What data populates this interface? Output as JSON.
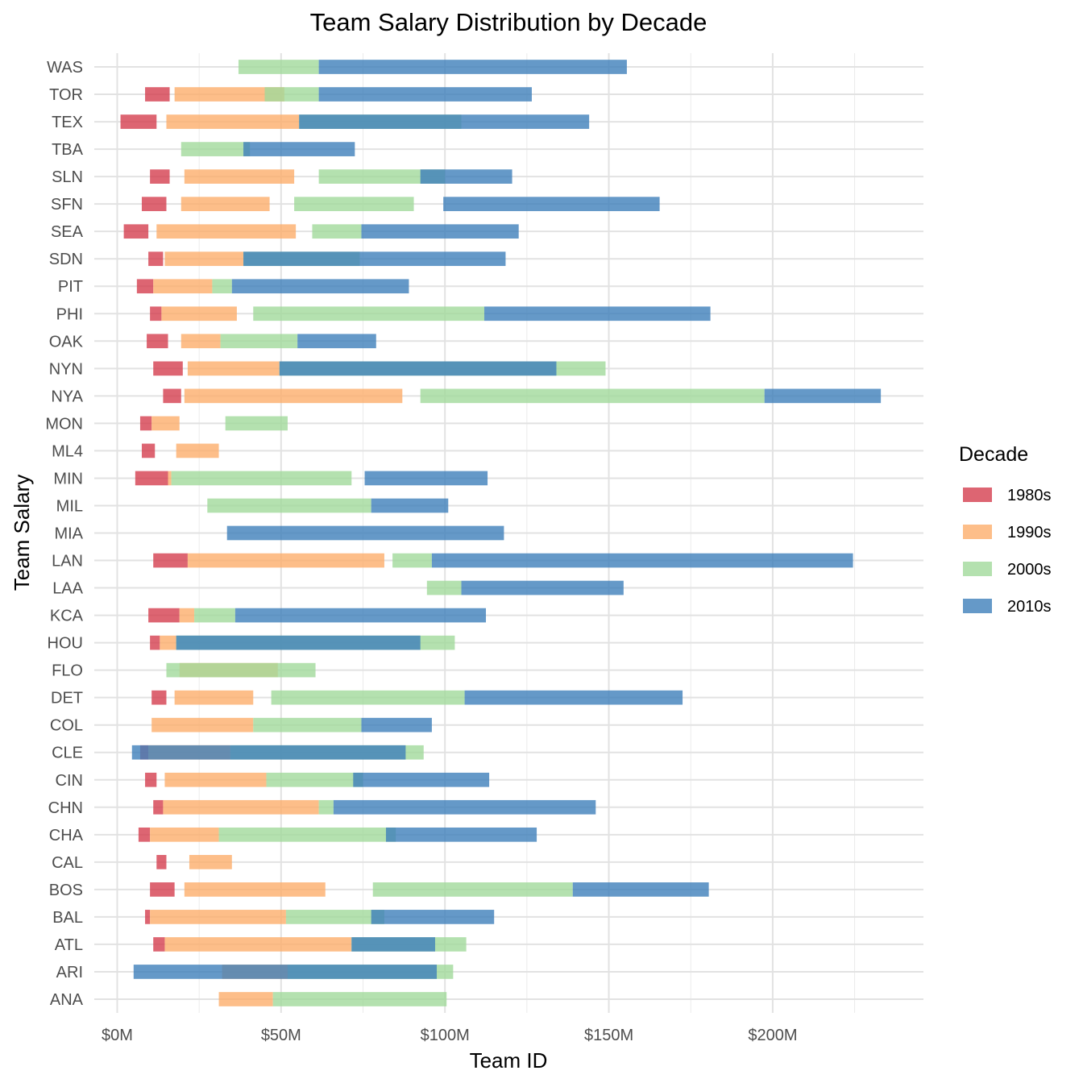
{
  "chart_data": {
    "type": "bar",
    "title": "Team Salary Distribution by Decade",
    "xlabel": "Team ID",
    "ylabel": "Team Salary",
    "xlim": [
      -7,
      246
    ],
    "x_ticks": [
      0,
      50,
      100,
      150,
      200
    ],
    "x_tick_labels": [
      "$0M",
      "$50M",
      "$100M",
      "$150M",
      "$200M"
    ],
    "grid": true,
    "legend": {
      "title": "Decade",
      "position": "right"
    },
    "series": [
      {
        "name": "1980s",
        "color": "#D53E4F"
      },
      {
        "name": "1990s",
        "color": "#FDAE6B"
      },
      {
        "name": "2000s",
        "color": "#A1D99B"
      },
      {
        "name": "2010s",
        "color": "#3E7FBA"
      }
    ],
    "categories": [
      "ANA",
      "ARI",
      "ATL",
      "BAL",
      "BOS",
      "CAL",
      "CHA",
      "CHN",
      "CIN",
      "CLE",
      "COL",
      "DET",
      "FLO",
      "HOU",
      "KCA",
      "LAA",
      "LAN",
      "MIA",
      "MIL",
      "MIN",
      "ML4",
      "MON",
      "NYA",
      "NYN",
      "OAK",
      "PHI",
      "PIT",
      "SDN",
      "SEA",
      "SFN",
      "SLN",
      "TBA",
      "TEX",
      "TOR",
      "WAS"
    ],
    "ranges": {
      "ANA": {
        "1990s": [
          31,
          47.5
        ],
        "2000s": [
          47.5,
          100.5
        ]
      },
      "ARI": {
        "1990s": [
          32,
          52
        ],
        "2000s": [
          52,
          102.5
        ],
        "2010s": [
          5,
          97.5
        ]
      },
      "ATL": {
        "1980s": [
          11,
          14.5
        ],
        "1990s": [
          14.5,
          71.5
        ],
        "2000s": [
          71.5,
          106.5
        ],
        "2010s": [
          71.5,
          97
        ]
      },
      "BAL": {
        "1980s": [
          8.5,
          10
        ],
        "1990s": [
          10,
          51.5
        ],
        "2000s": [
          51.5,
          81.5
        ],
        "2010s": [
          77.5,
          115
        ]
      },
      "BOS": {
        "1980s": [
          10,
          17.5
        ],
        "1990s": [
          20.5,
          63.5
        ],
        "2000s": [
          78,
          139
        ],
        "2010s": [
          139,
          180.5
        ]
      },
      "CAL": {
        "1980s": [
          12,
          15
        ],
        "1990s": [
          22,
          35
        ]
      },
      "CHA": {
        "1980s": [
          6.5,
          10
        ],
        "1990s": [
          10,
          31
        ],
        "2000s": [
          31,
          85
        ],
        "2010s": [
          82,
          128
        ]
      },
      "CHN": {
        "1980s": [
          11,
          14
        ],
        "1990s": [
          14,
          61.5
        ],
        "2000s": [
          61.5,
          66
        ],
        "2010s": [
          66,
          146
        ]
      },
      "CIN": {
        "1980s": [
          8.5,
          12
        ],
        "1990s": [
          14.5,
          45.5
        ],
        "2000s": [
          45.5,
          75
        ],
        "2010s": [
          72,
          113.5
        ]
      },
      "CLE": {
        "1980s": [
          7,
          9.5
        ],
        "1990s": [
          9.5,
          34.5
        ],
        "2000s": [
          34.5,
          93.5
        ],
        "2010s": [
          4.5,
          88
        ]
      },
      "COL": {
        "1990s": [
          10.5,
          41.5
        ],
        "2000s": [
          41.5,
          74.5
        ],
        "2010s": [
          74.5,
          96
        ]
      },
      "DET": {
        "1980s": [
          10.5,
          15
        ],
        "1990s": [
          17.5,
          41.5
        ],
        "2000s": [
          47,
          106
        ],
        "2010s": [
          106,
          172.5
        ]
      },
      "FLO": {
        "1990s": [
          19,
          49
        ],
        "2000s": [
          15,
          60.5
        ]
      },
      "HOU": {
        "1980s": [
          10,
          13
        ],
        "1990s": [
          13,
          18
        ],
        "2000s": [
          18,
          103
        ],
        "2010s": [
          18,
          92.5
        ]
      },
      "KCA": {
        "1980s": [
          9.5,
          19
        ],
        "1990s": [
          19,
          23.5
        ],
        "2000s": [
          23.5,
          36
        ],
        "2010s": [
          36,
          112.5
        ]
      },
      "LAA": {
        "2000s": [
          94.5,
          105
        ],
        "2010s": [
          105,
          154.5
        ]
      },
      "LAN": {
        "1980s": [
          11,
          21.5
        ],
        "1990s": [
          21.5,
          81.5
        ],
        "2000s": [
          84,
          96
        ],
        "2010s": [
          96,
          224.5
        ]
      },
      "MIA": {
        "2010s": [
          33.5,
          118
        ]
      },
      "MIL": {
        "2000s": [
          27.5,
          77.5
        ],
        "2010s": [
          77.5,
          101
        ]
      },
      "MIN": {
        "1980s": [
          5.5,
          15.5
        ],
        "1990s": [
          15.5,
          16.5
        ],
        "2000s": [
          16.5,
          71.5
        ],
        "2010s": [
          75.5,
          113
        ]
      },
      "ML4": {
        "1980s": [
          7.5,
          11.5
        ],
        "1990s": [
          18,
          31
        ]
      },
      "MON": {
        "1980s": [
          7,
          10.5
        ],
        "1990s": [
          10.5,
          19
        ],
        "2000s": [
          33,
          52
        ]
      },
      "NYA": {
        "1980s": [
          14,
          19.5
        ],
        "1990s": [
          20.5,
          87
        ],
        "2000s": [
          92.5,
          197.5
        ],
        "2010s": [
          197.5,
          233
        ]
      },
      "NYN": {
        "1980s": [
          11,
          20
        ],
        "1990s": [
          21.5,
          49.5
        ],
        "2000s": [
          49.5,
          149
        ],
        "2010s": [
          49.5,
          134
        ]
      },
      "OAK": {
        "1980s": [
          9,
          15.5
        ],
        "1990s": [
          19.5,
          31.5
        ],
        "2000s": [
          31.5,
          55
        ],
        "2010s": [
          55,
          79
        ]
      },
      "PHI": {
        "1980s": [
          10,
          13.5
        ],
        "1990s": [
          13.5,
          36.5
        ],
        "2000s": [
          41.5,
          112
        ],
        "2010s": [
          112,
          181
        ]
      },
      "PIT": {
        "1980s": [
          6,
          11
        ],
        "1990s": [
          11,
          29
        ],
        "2000s": [
          29,
          35
        ],
        "2010s": [
          35,
          89
        ]
      },
      "SDN": {
        "1980s": [
          9.5,
          14
        ],
        "1990s": [
          14.5,
          38.5
        ],
        "2000s": [
          38.5,
          74
        ],
        "2010s": [
          38.5,
          118.5
        ]
      },
      "SEA": {
        "1980s": [
          2,
          9.5
        ],
        "1990s": [
          12,
          54.5
        ],
        "2000s": [
          59.5,
          74.5
        ],
        "2010s": [
          74.5,
          122.5
        ]
      },
      "SFN": {
        "1980s": [
          7.5,
          15
        ],
        "1990s": [
          19.5,
          46.5
        ],
        "2000s": [
          54,
          90.5
        ],
        "2010s": [
          99.5,
          165.5
        ]
      },
      "SLN": {
        "1980s": [
          10,
          16
        ],
        "1990s": [
          20.5,
          54
        ],
        "2000s": [
          61.5,
          100
        ],
        "2010s": [
          92.5,
          120.5
        ]
      },
      "TBA": {
        "2000s": [
          19.5,
          40.5
        ],
        "2010s": [
          38.5,
          72.5
        ]
      },
      "TEX": {
        "1980s": [
          1,
          12
        ],
        "1990s": [
          15,
          55.5
        ],
        "2000s": [
          55.5,
          105
        ],
        "2010s": [
          55.5,
          144
        ]
      },
      "TOR": {
        "1980s": [
          8.5,
          16
        ],
        "1990s": [
          17.5,
          51
        ],
        "2000s": [
          45,
          61.5
        ],
        "2010s": [
          61.5,
          126.5
        ]
      },
      "WAS": {
        "2000s": [
          37,
          61.5
        ],
        "2010s": [
          61.5,
          155.5
        ]
      }
    }
  }
}
